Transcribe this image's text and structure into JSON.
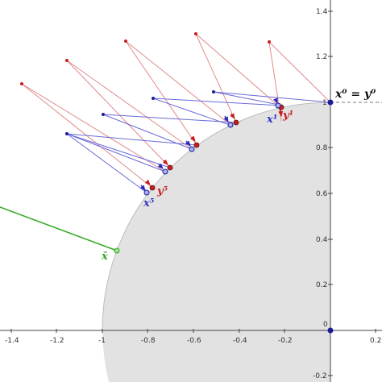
{
  "axes": {
    "x_ticks": [
      "-1.4",
      "-1.2",
      "-1",
      "-0.8",
      "-0.6",
      "-0.4",
      "-0.2",
      "0",
      "0.2"
    ],
    "y_ticks": [
      "1.4",
      "1.2",
      "1",
      "0.8",
      "0.6",
      "0.4",
      "0.2",
      "0",
      "-0.2"
    ]
  },
  "labels": {
    "start": "x⁰ = y⁰",
    "x1": "x¹",
    "y1": "y¹",
    "x5": "x⁵",
    "y5": "y⁵",
    "xbar": "x̄"
  },
  "colors": {
    "blue": "#3535c8",
    "red": "#c81e1e",
    "green": "#2fa81f",
    "disk_fill": "#e2e2e2"
  }
}
